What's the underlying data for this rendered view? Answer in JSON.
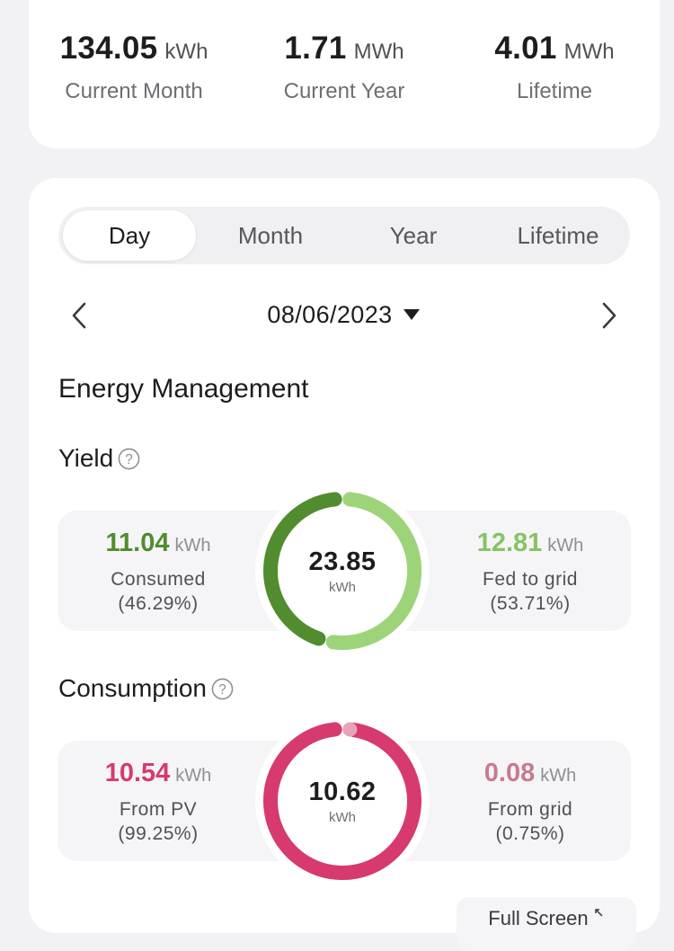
{
  "stats": [
    {
      "value": "134.05",
      "unit": "kWh",
      "label": "Current Month"
    },
    {
      "value": "1.71",
      "unit": "MWh",
      "label": "Current Year"
    },
    {
      "value": "4.01",
      "unit": "MWh",
      "label": "Lifetime"
    }
  ],
  "tabs": [
    {
      "label": "Day",
      "active": true
    },
    {
      "label": "Month",
      "active": false
    },
    {
      "label": "Year",
      "active": false
    },
    {
      "label": "Lifetime",
      "active": false
    }
  ],
  "date_nav": {
    "date": "08/06/2023",
    "prev_icon": "chevron-left-icon",
    "next_icon": "chevron-right-icon",
    "dropdown_icon": "caret-down-icon"
  },
  "section_title": "Energy Management",
  "yield": {
    "heading": "Yield",
    "help_icon": "help-icon",
    "total": {
      "value": "23.85",
      "unit": "kWh"
    },
    "left": {
      "value": "11.04",
      "unit": "kWh",
      "label": "Consumed",
      "percent": "(46.29%)",
      "fraction": 0.4629,
      "color": "#518c2e"
    },
    "right": {
      "value": "12.81",
      "unit": "kWh",
      "label": "Fed to grid",
      "percent": "(53.71%)",
      "fraction": 0.5371,
      "color": "#9dd47a"
    }
  },
  "consumption": {
    "heading": "Consumption",
    "help_icon": "help-icon",
    "total": {
      "value": "10.62",
      "unit": "kWh"
    },
    "left": {
      "value": "10.54",
      "unit": "kWh",
      "label": "From PV",
      "percent": "(99.25%)",
      "fraction": 0.9925,
      "color": "#d63a6e"
    },
    "right": {
      "value": "0.08",
      "unit": "kWh",
      "label": "From grid",
      "percent": "(0.75%)",
      "fraction": 0.0075,
      "color": "#e8a3b6"
    }
  },
  "fullscreen_label": "Full Screen",
  "fullscreen_icon": "expand-icon"
}
